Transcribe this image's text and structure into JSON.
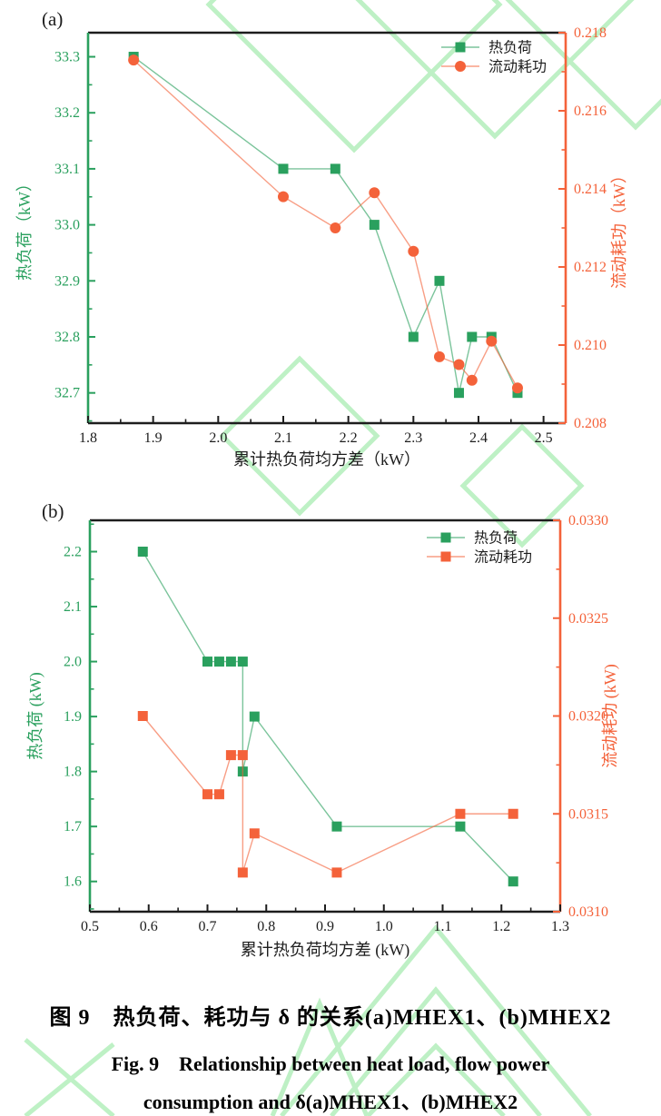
{
  "colors": {
    "heat_load_green": "#2aa05e",
    "flow_power_orange": "#f4623a",
    "axis_black": "#1d1d1d",
    "legend_text": "#1d1d1d",
    "watermark_green": "#b7efbf"
  },
  "caption": {
    "zh": "图 9　热负荷、耗功与 δ 的关系(a)MHEX1、(b)MHEX2",
    "en_line1": "Fig. 9　Relationship between heat load, flow power",
    "en_line2": "consumption and δ(a)MHEX1、(b)MHEX2"
  },
  "chart_data": [
    {
      "id": "a",
      "type": "line",
      "panel_label": "(a)",
      "xlabel": "累计热负荷均方差（kW）",
      "ylabel_left": "热负荷（kW）",
      "ylabel_right": "流动耗功（kW）",
      "xlim": [
        1.8,
        2.534
      ],
      "ylim_left": [
        32.646,
        33.343
      ],
      "ylim_right": [
        0.208,
        0.218
      ],
      "x_ticks": [
        "1.8",
        "1.9",
        "2.0",
        "2.1",
        "2.2",
        "2.3",
        "2.4",
        "2.5"
      ],
      "y_left_ticks": [
        "32.7",
        "32.8",
        "32.9",
        "33.0",
        "33.1",
        "33.2",
        "33.3"
      ],
      "y_right_ticks": [
        "0.208",
        "0.210",
        "0.212",
        "0.214",
        "0.216",
        "0.218"
      ],
      "grid": false,
      "legend_position": "upper-right-inside",
      "series": [
        {
          "key": "heat-load",
          "name": "热负荷",
          "axis": "left",
          "marker": "square",
          "color": "#2aa05e",
          "x": [
            1.87,
            2.1,
            2.18,
            2.24,
            2.3,
            2.34,
            2.37,
            2.39,
            2.42,
            2.46
          ],
          "y": [
            33.3,
            33.1,
            33.1,
            33.0,
            32.8,
            32.9,
            32.7,
            32.8,
            32.8,
            32.7
          ]
        },
        {
          "key": "flow-power",
          "name": "流动耗功",
          "axis": "right",
          "marker": "circle",
          "color": "#f4623a",
          "x": [
            1.87,
            2.1,
            2.18,
            2.24,
            2.3,
            2.34,
            2.37,
            2.39,
            2.42,
            2.46
          ],
          "y": [
            0.2173,
            0.2138,
            0.213,
            0.2139,
            0.2124,
            0.2097,
            0.2095,
            0.2091,
            0.2101,
            0.2089
          ]
        }
      ]
    },
    {
      "id": "b",
      "type": "line",
      "panel_label": "(b)",
      "xlabel": "累计热负荷均方差 (kW)",
      "ylabel_left": "热负荷 (kW)",
      "ylabel_right": "流动耗功 (kW)",
      "xlim": [
        0.5,
        1.3
      ],
      "ylim_left": [
        1.545,
        2.257
      ],
      "ylim_right": [
        0.031,
        0.033
      ],
      "x_ticks": [
        "0.5",
        "0.6",
        "0.7",
        "0.8",
        "0.9",
        "1.0",
        "1.1",
        "1.2",
        "1.3"
      ],
      "y_left_ticks": [
        "1.6",
        "1.7",
        "1.8",
        "1.9",
        "2.0",
        "2.1",
        "2.2"
      ],
      "y_right_ticks": [
        "0.0310",
        "0.0315",
        "0.0320",
        "0.0325",
        "0.0330"
      ],
      "grid": false,
      "legend_position": "upper-right-inside",
      "series": [
        {
          "key": "heat-load",
          "name": "热负荷",
          "axis": "left",
          "marker": "square",
          "color": "#2aa05e",
          "x": [
            0.59,
            0.7,
            0.72,
            0.74,
            0.76,
            0.76,
            0.78,
            0.92,
            1.13,
            1.22
          ],
          "y": [
            2.2,
            2.0,
            2.0,
            2.0,
            2.0,
            1.8,
            1.9,
            1.7,
            1.7,
            1.6
          ]
        },
        {
          "key": "flow-power",
          "name": "流动耗功",
          "axis": "right",
          "marker": "square",
          "color": "#f4623a",
          "x": [
            0.59,
            0.7,
            0.72,
            0.74,
            0.76,
            0.76,
            0.78,
            0.92,
            1.13,
            1.22
          ],
          "y": [
            0.032,
            0.0316,
            0.0316,
            0.0318,
            0.0318,
            0.0312,
            0.0314,
            0.0312,
            0.0315,
            0.0315
          ]
        }
      ]
    }
  ]
}
